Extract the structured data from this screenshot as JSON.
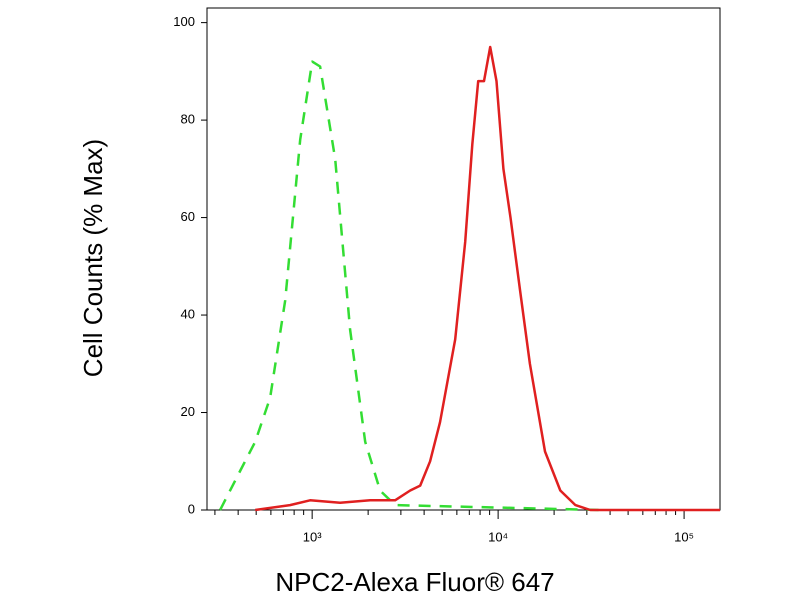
{
  "chart_data": {
    "type": "line",
    "xlabel": "NPC2-Alexa Fluor® 647",
    "ylabel": "Cell Counts (% Max)",
    "xscale": "log",
    "xlim": [
      272,
      156000
    ],
    "ylim": [
      0,
      103
    ],
    "xticks": [
      {
        "value": 1000,
        "label": "10³"
      },
      {
        "value": 10000,
        "label": "10⁴"
      },
      {
        "value": 100000,
        "label": "10⁵"
      }
    ],
    "xminorticks": [
      300,
      400,
      500,
      600,
      700,
      800,
      900,
      2000,
      3000,
      4000,
      5000,
      6000,
      7000,
      8000,
      9000,
      20000,
      30000,
      40000,
      50000,
      60000,
      70000,
      80000,
      90000
    ],
    "yticks": [
      0,
      20,
      40,
      60,
      80,
      100
    ],
    "series": [
      {
        "color": "#33dd33",
        "dashed": true,
        "x": [
          320,
          410,
          494,
          594,
          716,
          862,
          1000,
          1104,
          1330,
          1600,
          1928,
          2320,
          2793,
          35500
        ],
        "values": [
          0,
          8,
          14,
          23,
          43,
          76,
          92,
          91,
          72,
          37,
          14,
          4,
          1,
          0
        ]
      },
      {
        "color": "#e02020",
        "dashed": false,
        "x": [
          494,
          760,
          975,
          1414,
          2050,
          2793,
          3365,
          3810,
          4310,
          4870,
          5880,
          6650,
          7260,
          7810,
          8400,
          9070,
          9800,
          10680,
          11650,
          13130,
          14830,
          17870,
          21600,
          26050,
          31300,
          156000
        ],
        "values": [
          0,
          1,
          2,
          1.5,
          2,
          2,
          4,
          5,
          10,
          18,
          35,
          55,
          75,
          88,
          88,
          95,
          88,
          70,
          60,
          45,
          30,
          12,
          4,
          1,
          0,
          0
        ]
      }
    ]
  }
}
